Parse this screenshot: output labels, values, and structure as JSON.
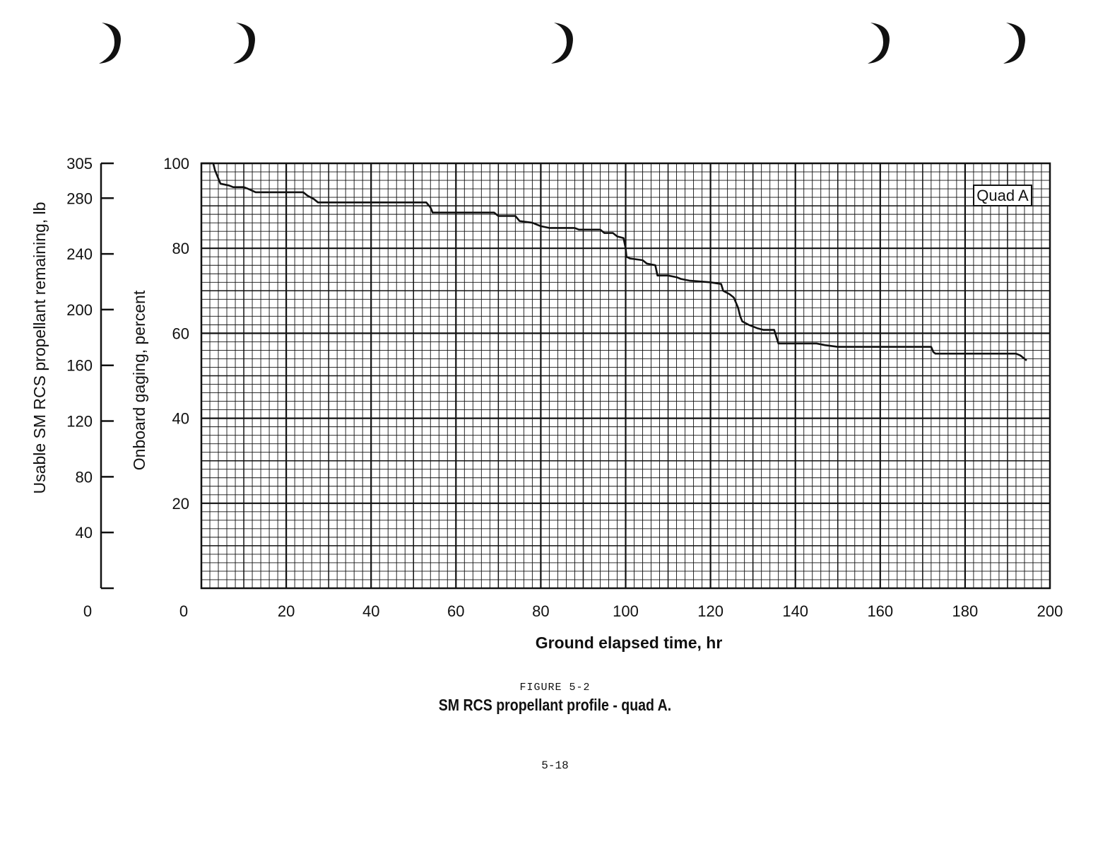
{
  "chart_data": {
    "type": "line",
    "series": [
      {
        "name": "",
        "points": [
          [
            0,
            100
          ],
          [
            2.8,
            100
          ],
          [
            3.2,
            98.4
          ],
          [
            4.5,
            95.2
          ],
          [
            6.5,
            94.8
          ],
          [
            7.5,
            94.4
          ],
          [
            10,
            94.4
          ],
          [
            11,
            94.0
          ],
          [
            12.8,
            93.2
          ],
          [
            24,
            93.2
          ],
          [
            25,
            92.4
          ],
          [
            26.5,
            91.6
          ],
          [
            27.5,
            90.8
          ],
          [
            53,
            90.8
          ],
          [
            54,
            89.6
          ],
          [
            54.5,
            88.4
          ],
          [
            69,
            88.4
          ],
          [
            70,
            87.6
          ],
          [
            74,
            87.6
          ],
          [
            75,
            86.4
          ],
          [
            78,
            86.0
          ],
          [
            80,
            85.2
          ],
          [
            82,
            84.8
          ],
          [
            88,
            84.8
          ],
          [
            89,
            84.4
          ],
          [
            94,
            84.4
          ],
          [
            95,
            83.6
          ],
          [
            97,
            83.6
          ],
          [
            98,
            82.8
          ],
          [
            99.5,
            82.4
          ],
          [
            100,
            80.0
          ],
          [
            100.2,
            78.0
          ],
          [
            101,
            77.6
          ],
          [
            104,
            77.2
          ],
          [
            105,
            76.4
          ],
          [
            107,
            76.0
          ],
          [
            107.5,
            73.6
          ],
          [
            110,
            73.6
          ],
          [
            112,
            73.2
          ],
          [
            113,
            72.8
          ],
          [
            115,
            72.4
          ],
          [
            120,
            72.0
          ],
          [
            122.5,
            71.6
          ],
          [
            123,
            70.0
          ],
          [
            124.5,
            69.2
          ],
          [
            125.5,
            68.4
          ],
          [
            126.5,
            66.0
          ],
          [
            127,
            64.0
          ],
          [
            127.5,
            62.8
          ],
          [
            129,
            62.0
          ],
          [
            131,
            61.2
          ],
          [
            132.5,
            60.8
          ],
          [
            135,
            60.8
          ],
          [
            135.5,
            59.2
          ],
          [
            136,
            57.6
          ],
          [
            145,
            57.6
          ],
          [
            147,
            57.2
          ],
          [
            150,
            56.8
          ],
          [
            172,
            56.8
          ],
          [
            172.5,
            55.6
          ],
          [
            173,
            55.2
          ],
          [
            180,
            55.2
          ],
          [
            192,
            55.2
          ],
          [
            193,
            54.8
          ],
          [
            194.5,
            53.6
          ]
        ]
      }
    ],
    "xlabel": "Ground elapsed time, hr",
    "xlim": [
      0,
      200
    ],
    "xticks": [
      0,
      20,
      40,
      60,
      80,
      100,
      120,
      140,
      160,
      180,
      200
    ],
    "ylabel": "Onboard gaging, percent",
    "ylim": [
      0,
      100
    ],
    "yticks": [
      0,
      20,
      40,
      60,
      80,
      100
    ],
    "secondary_y": {
      "label": "Usable SM RCS propellant remaining, lb",
      "ticks": [
        0,
        40,
        80,
        120,
        160,
        200,
        240,
        280,
        305
      ]
    },
    "annotation": "Quad A",
    "grid": true
  },
  "figure": {
    "number": "FIGURE 5-2",
    "caption": "SM RCS propellant profile - quad A."
  },
  "page_number": "5-18",
  "colors": {
    "ink": "#111111",
    "grid": "#1a1a1a",
    "paper": "#ffffff"
  }
}
